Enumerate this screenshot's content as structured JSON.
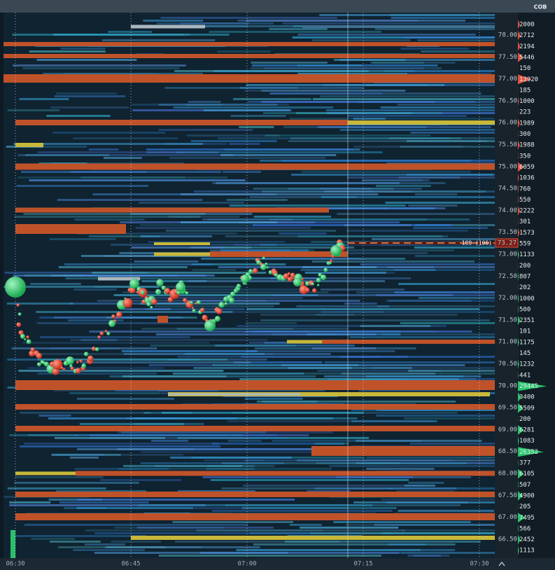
{
  "header": {
    "title": "COB"
  },
  "price_axis": {
    "labels": [
      "78.00",
      "77.50",
      "77.00",
      "76.50",
      "76.00",
      "75.50",
      "75.00",
      "74.50",
      "74.00",
      "73.50",
      "73.00",
      "72.50",
      "72.00",
      "71.50",
      "71.00",
      "70.50",
      "70.00",
      "69.50",
      "69.00",
      "68.50",
      "68.00",
      "67.50",
      "67.00",
      "66.50"
    ]
  },
  "order_book": {
    "ask_color": "#e0533f",
    "bid_color": "#27c46a",
    "asks": [
      2000,
      2712,
      2194,
      5446,
      150,
      13920,
      185,
      1000,
      223,
      1989,
      300,
      1988,
      350,
      6059,
      1036,
      760,
      550,
      2222,
      301,
      1573,
      559
    ],
    "bids": [
      1133,
      200,
      807,
      202,
      1000,
      500,
      2351,
      101,
      1175,
      145,
      1232,
      441,
      29445,
      3400,
      5509,
      200,
      6281,
      1083,
      26352,
      377,
      6105,
      507,
      4900,
      205,
      7495,
      566,
      2452,
      1113
    ]
  },
  "time_axis": {
    "labels": [
      "06:30",
      "06:45",
      "07:00",
      "07:15",
      "07:30"
    ]
  },
  "last_trade": {
    "label": "100 (100)",
    "price": "73.27"
  }
}
